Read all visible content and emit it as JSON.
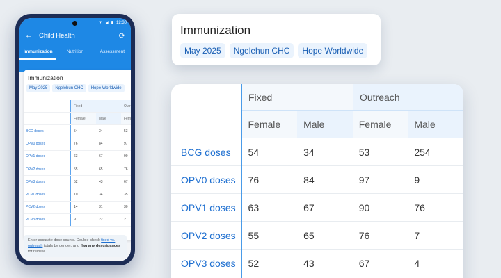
{
  "phone": {
    "status": {
      "time": "12:30"
    },
    "app_title": "Child Health",
    "tabs": [
      {
        "label": "Immunization",
        "active": true
      },
      {
        "label": "Nutrition",
        "active": false
      },
      {
        "label": "Assessment",
        "active": false
      }
    ],
    "card_title": "Immunization",
    "chips": [
      "May 2025",
      "Ngelehun CHC",
      "Hope Worldwide"
    ],
    "table": {
      "groups": [
        "Fixed",
        "Outreach"
      ],
      "subheaders": [
        "Female",
        "Male",
        "Female"
      ],
      "rows": [
        {
          "label": "BCG doses",
          "values": [
            "54",
            "34",
            "53"
          ]
        },
        {
          "label": "OPV0 doses",
          "values": [
            "76",
            "84",
            "97"
          ]
        },
        {
          "label": "OPV1 doses",
          "values": [
            "63",
            "67",
            "90"
          ]
        },
        {
          "label": "OPV2 doses",
          "values": [
            "55",
            "65",
            "76"
          ]
        },
        {
          "label": "OPV3 doses",
          "values": [
            "52",
            "43",
            "67"
          ]
        },
        {
          "label": "PCV1 doses",
          "values": [
            "10",
            "34",
            "35"
          ]
        },
        {
          "label": "PCV2 doses",
          "values": [
            "14",
            "31",
            "30"
          ]
        },
        {
          "label": "PCV3 doses",
          "values": [
            "9",
            "22",
            "2"
          ]
        }
      ]
    },
    "hint": {
      "part1": "Enter accurate dose counts. Double-check ",
      "link": "fixed vs. outreach",
      "part2": " totals by gender, and ",
      "bold": "flag any descripances",
      "part3": " for review."
    }
  },
  "zoom_header": {
    "title": "Immunization",
    "chips": [
      "May 2025",
      "Ngelehun CHC",
      "Hope Worldwide"
    ]
  },
  "zoom_table": {
    "groups": [
      "Fixed",
      "Outreach"
    ],
    "subheaders": [
      "Female",
      "Male",
      "Female",
      "Male"
    ],
    "rows": [
      {
        "label": "BCG doses",
        "values": [
          "54",
          "34",
          "53",
          "254"
        ]
      },
      {
        "label": "OPV0 doses",
        "values": [
          "76",
          "84",
          "97",
          "9"
        ]
      },
      {
        "label": "OPV1 doses",
        "values": [
          "63",
          "67",
          "90",
          "76"
        ]
      },
      {
        "label": "OPV2 doses",
        "values": [
          "55",
          "65",
          "76",
          "7"
        ]
      },
      {
        "label": "OPV3 doses",
        "values": [
          "52",
          "43",
          "67",
          "4"
        ]
      }
    ]
  },
  "colors": {
    "primary": "#1e88e5",
    "link": "#1e6fd0",
    "chip_bg": "#eaf3fd",
    "phone_frame": "#1c2c55"
  }
}
